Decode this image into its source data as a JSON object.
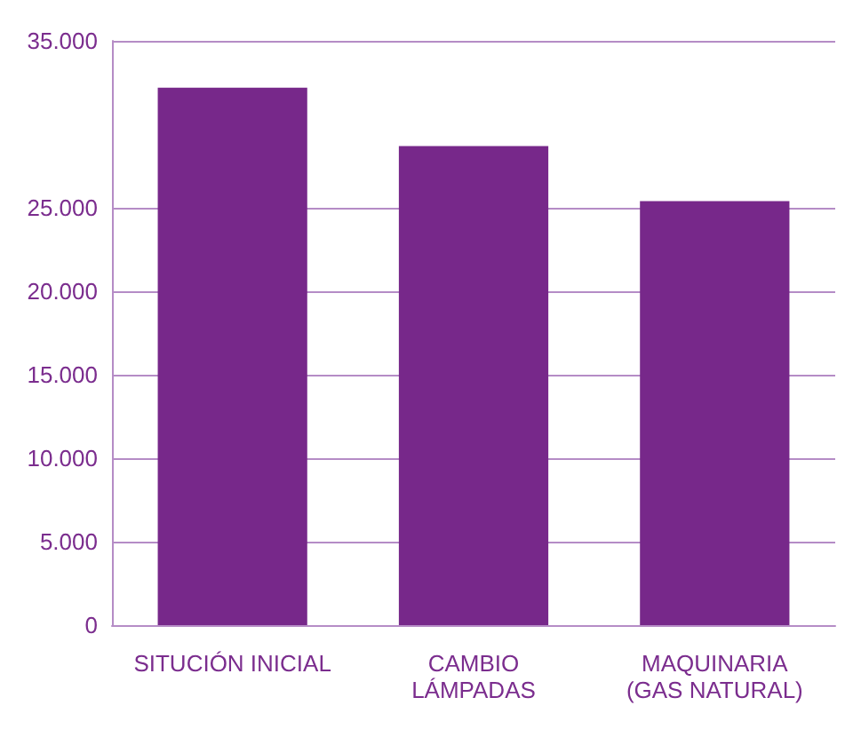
{
  "chart_data": {
    "type": "bar",
    "categories": [
      "SITUCIÓN INICIAL",
      "CAMBIO\nLÁMPADAS",
      "MAQUINARIA\n(GAS NATURAL)"
    ],
    "values": [
      32200,
      28700,
      25400
    ],
    "color": "#77288a",
    "ylim": [
      0,
      35000
    ],
    "yticks": [
      0,
      {
        "value": 5000,
        "label": "5.000"
      },
      {
        "value": 10000,
        "label": "10.000"
      },
      {
        "value": 15000,
        "label": "15.000"
      },
      {
        "value": 20000,
        "label": "20.000"
      },
      {
        "value": 25000,
        "label": "25.000"
      },
      {
        "value": 35000,
        "label": "35.000"
      }
    ],
    "grid": true
  }
}
